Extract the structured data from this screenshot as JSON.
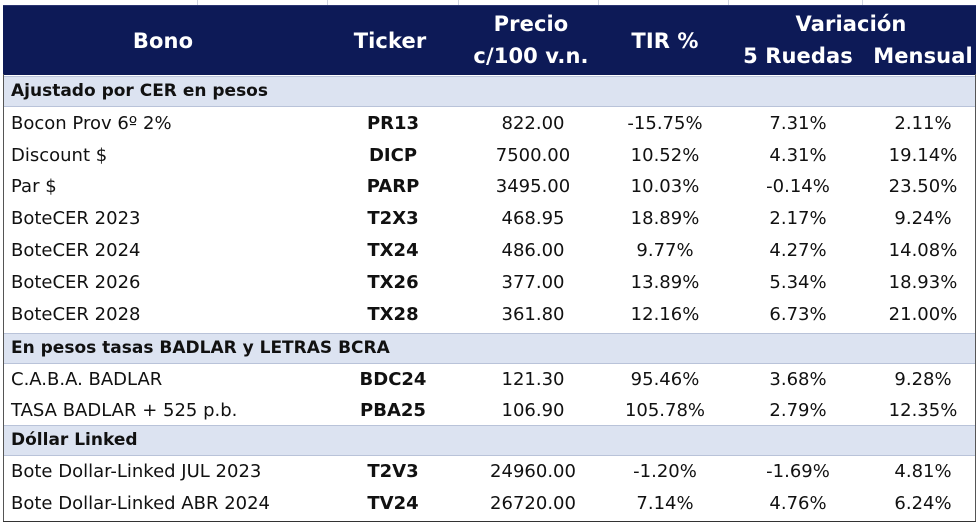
{
  "header": {
    "bono": "Bono",
    "ticker": "Ticker",
    "precio_line1": "Precio",
    "precio_line2": "c/100 v.n.",
    "tir": "TIR %",
    "variacion": "Variación",
    "ruedas": "5 Ruedas",
    "mensual": "Mensual"
  },
  "sections": [
    {
      "title": "Ajustado por CER en pesos",
      "rows": [
        {
          "name": "Bocon Prov 6º 2%",
          "ticker": "PR13",
          "precio": "822.00",
          "tir": "-15.75%",
          "var5": "7.31%",
          "mens": "2.11%"
        },
        {
          "name": "Discount $",
          "ticker": "DICP",
          "precio": "7500.00",
          "tir": "10.52%",
          "var5": "4.31%",
          "mens": "19.14%"
        },
        {
          "name": "Par $",
          "ticker": "PARP",
          "precio": "3495.00",
          "tir": "10.03%",
          "var5": "-0.14%",
          "mens": "23.50%"
        },
        {
          "name": "BoteCER 2023",
          "ticker": "T2X3",
          "precio": "468.95",
          "tir": "18.89%",
          "var5": "2.17%",
          "mens": "9.24%"
        },
        {
          "name": "BoteCER 2024",
          "ticker": "TX24",
          "precio": "486.00",
          "tir": "9.77%",
          "var5": "4.27%",
          "mens": "14.08%"
        },
        {
          "name": "BoteCER 2026",
          "ticker": "TX26",
          "precio": "377.00",
          "tir": "13.89%",
          "var5": "5.34%",
          "mens": "18.93%"
        },
        {
          "name": "BoteCER 2028",
          "ticker": "TX28",
          "precio": "361.80",
          "tir": "12.16%",
          "var5": "6.73%",
          "mens": "21.00%"
        }
      ]
    },
    {
      "title": "En pesos tasas BADLAR y LETRAS BCRA",
      "rows": [
        {
          "name": "C.A.B.A. BADLAR",
          "ticker": "BDC24",
          "precio": "121.30",
          "tir": "95.46%",
          "var5": "3.68%",
          "mens": "9.28%"
        },
        {
          "name": "TASA BADLAR + 525 p.b.",
          "ticker": "PBA25",
          "precio": "106.90",
          "tir": "105.78%",
          "var5": "2.79%",
          "mens": "12.35%"
        }
      ]
    },
    {
      "title": "Dóllar Linked",
      "rows": [
        {
          "name": "Bote Dollar-Linked JUL 2023",
          "ticker": "T2V3",
          "precio": "24960.00",
          "tir": "-1.20%",
          "var5": "-1.69%",
          "mens": "4.81%"
        },
        {
          "name": "Bote Dollar-Linked ABR 2024",
          "ticker": "TV24",
          "precio": "26720.00",
          "tir": "7.14%",
          "var5": "4.76%",
          "mens": "6.24%"
        }
      ]
    }
  ]
}
